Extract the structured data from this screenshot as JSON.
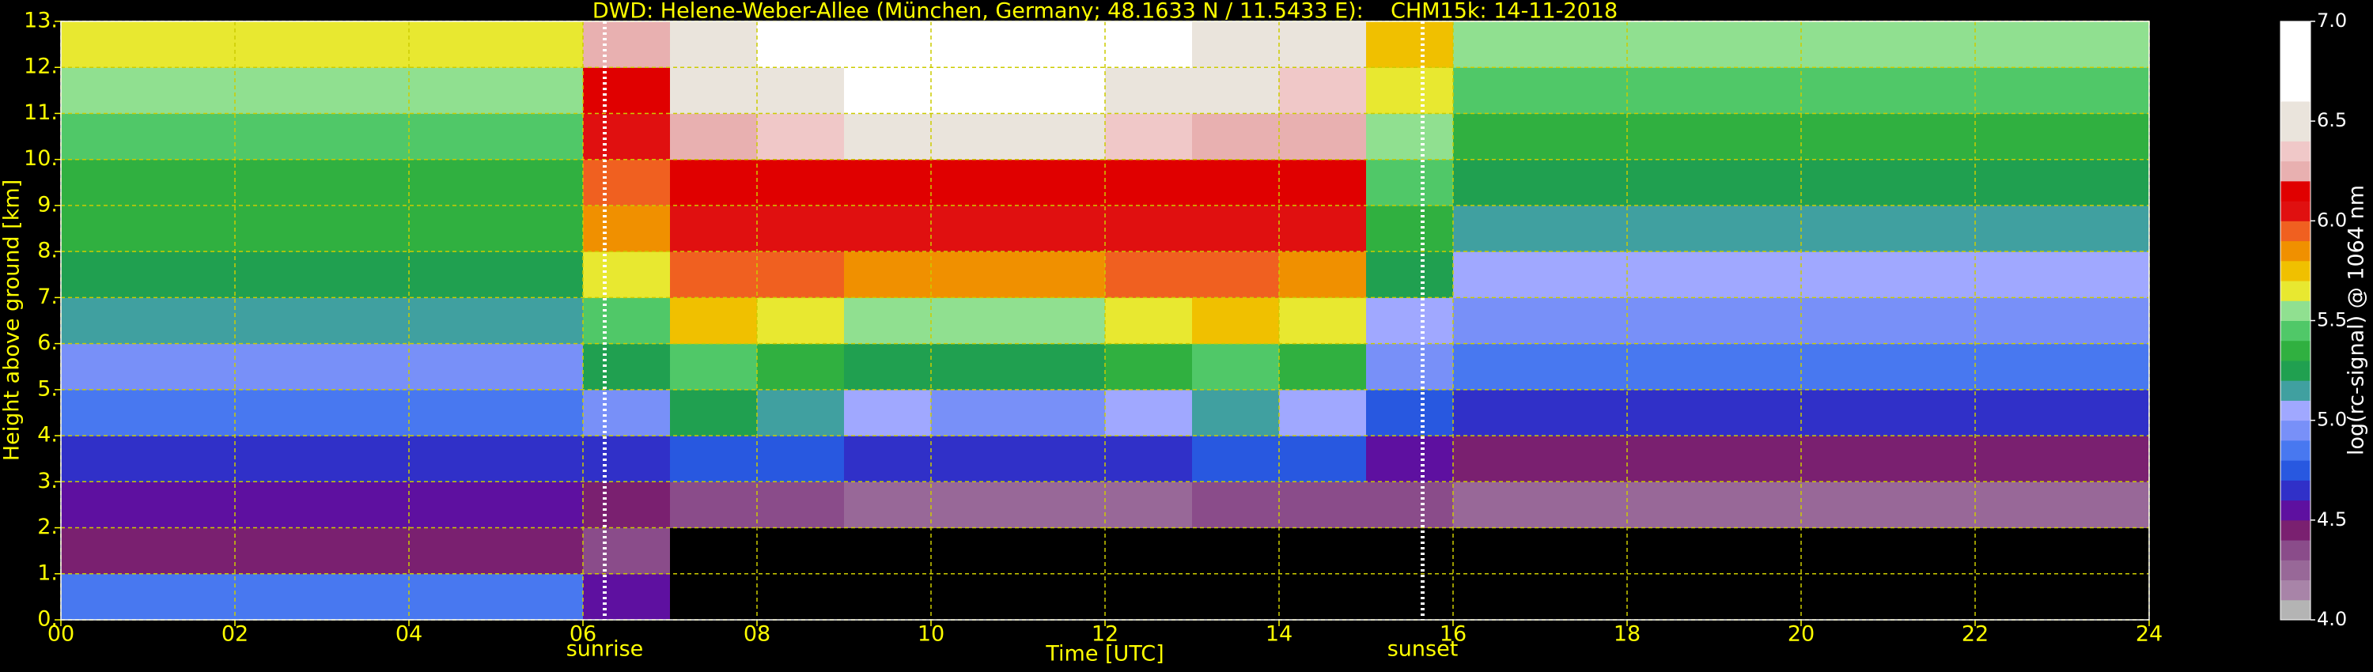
{
  "chart_data": {
    "type": "heatmap",
    "title": "DWD: Helene-Weber-Allee (München, Germany; 48.1633 N / 11.5433 E):    CHM15k: 14-11-2018",
    "xlabel": "Time [UTC]",
    "ylabel": "Height above ground [km]",
    "xlim": [
      0,
      24
    ],
    "ylim": [
      0,
      13
    ],
    "xticks": [
      {
        "value": 0,
        "label": "00"
      },
      {
        "value": 2,
        "label": "02"
      },
      {
        "value": 4,
        "label": "04"
      },
      {
        "value": 6,
        "label": "06"
      },
      {
        "value": 8,
        "label": "08"
      },
      {
        "value": 10,
        "label": "10"
      },
      {
        "value": 12,
        "label": "12"
      },
      {
        "value": 14,
        "label": "14"
      },
      {
        "value": 16,
        "label": "16"
      },
      {
        "value": 18,
        "label": "18"
      },
      {
        "value": 20,
        "label": "20"
      },
      {
        "value": 22,
        "label": "22"
      },
      {
        "value": 24,
        "label": "24"
      }
    ],
    "yticks": [
      {
        "value": 0,
        "label": "0."
      },
      {
        "value": 1,
        "label": "1."
      },
      {
        "value": 2,
        "label": "2."
      },
      {
        "value": 3,
        "label": "3."
      },
      {
        "value": 4,
        "label": "4."
      },
      {
        "value": 5,
        "label": "5."
      },
      {
        "value": 6,
        "label": "6."
      },
      {
        "value": 7,
        "label": "7."
      },
      {
        "value": 8,
        "label": "8."
      },
      {
        "value": 9,
        "label": "9."
      },
      {
        "value": 10,
        "label": "10."
      },
      {
        "value": 11,
        "label": "11."
      },
      {
        "value": 12,
        "label": "12."
      },
      {
        "value": 13,
        "label": "13."
      }
    ],
    "grid": true,
    "xbins": [
      0,
      1,
      2,
      3,
      4,
      5,
      6,
      7,
      8,
      9,
      10,
      11,
      12,
      13,
      14,
      15,
      16,
      17,
      18,
      19,
      20,
      21,
      22,
      23,
      24
    ],
    "ybins": [
      0,
      1,
      2,
      3,
      4,
      5,
      6,
      7,
      8,
      9,
      10,
      11,
      12,
      13
    ],
    "z": [
      [
        4.8,
        4.8,
        4.8,
        4.8,
        4.8,
        4.8,
        4.5,
        3.9,
        3.9,
        3.9,
        3.9,
        3.9,
        3.9,
        3.9,
        3.9,
        3.9,
        3.9,
        3.9,
        3.9,
        3.9,
        3.9,
        3.9,
        3.9,
        3.9
      ],
      [
        4.4,
        4.4,
        4.4,
        4.4,
        4.4,
        4.4,
        4.3,
        3.9,
        3.9,
        3.9,
        3.9,
        3.9,
        3.9,
        3.9,
        3.9,
        3.9,
        3.9,
        3.9,
        3.9,
        3.9,
        3.9,
        3.9,
        3.9,
        3.9
      ],
      [
        4.5,
        4.5,
        4.5,
        4.5,
        4.5,
        4.5,
        4.4,
        4.3,
        4.3,
        4.2,
        4.2,
        4.2,
        4.2,
        4.3,
        4.3,
        4.3,
        4.2,
        4.2,
        4.2,
        4.2,
        4.2,
        4.2,
        4.2,
        4.2
      ],
      [
        4.6,
        4.6,
        4.6,
        4.6,
        4.6,
        4.6,
        4.6,
        4.7,
        4.7,
        4.6,
        4.6,
        4.6,
        4.6,
        4.7,
        4.7,
        4.5,
        4.4,
        4.4,
        4.4,
        4.4,
        4.4,
        4.4,
        4.4,
        4.4
      ],
      [
        4.8,
        4.8,
        4.8,
        4.8,
        4.8,
        4.8,
        4.9,
        5.2,
        5.1,
        5.0,
        4.9,
        4.9,
        5.0,
        5.1,
        5.0,
        4.7,
        4.6,
        4.6,
        4.6,
        4.6,
        4.6,
        4.6,
        4.6,
        4.6
      ],
      [
        4.9,
        4.9,
        4.9,
        4.9,
        4.9,
        4.9,
        5.2,
        5.4,
        5.3,
        5.2,
        5.2,
        5.2,
        5.3,
        5.4,
        5.3,
        4.9,
        4.8,
        4.8,
        4.8,
        4.8,
        4.8,
        4.8,
        4.8,
        4.8
      ],
      [
        5.1,
        5.1,
        5.1,
        5.1,
        5.1,
        5.1,
        5.4,
        5.7,
        5.6,
        5.5,
        5.5,
        5.5,
        5.6,
        5.7,
        5.6,
        5.0,
        4.9,
        4.9,
        4.9,
        4.9,
        4.9,
        4.9,
        4.9,
        4.9
      ],
      [
        5.2,
        5.2,
        5.2,
        5.2,
        5.2,
        5.2,
        5.6,
        5.9,
        5.9,
        5.8,
        5.8,
        5.8,
        5.9,
        5.9,
        5.8,
        5.2,
        5.0,
        5.0,
        5.0,
        5.0,
        5.0,
        5.0,
        5.0,
        5.0
      ],
      [
        5.3,
        5.3,
        5.3,
        5.3,
        5.3,
        5.3,
        5.8,
        6.0,
        6.0,
        6.0,
        6.0,
        6.0,
        6.0,
        6.0,
        6.0,
        5.3,
        5.1,
        5.1,
        5.1,
        5.1,
        5.1,
        5.1,
        5.1,
        5.1
      ],
      [
        5.3,
        5.3,
        5.3,
        5.3,
        5.3,
        5.3,
        5.9,
        6.1,
        6.1,
        6.1,
        6.1,
        6.1,
        6.1,
        6.1,
        6.1,
        5.4,
        5.2,
        5.2,
        5.2,
        5.2,
        5.2,
        5.2,
        5.2,
        5.2
      ],
      [
        5.4,
        5.4,
        5.4,
        5.4,
        5.4,
        5.4,
        6.0,
        6.2,
        6.3,
        6.4,
        6.4,
        6.4,
        6.3,
        6.2,
        6.2,
        5.5,
        5.3,
        5.3,
        5.3,
        5.3,
        5.3,
        5.3,
        5.3,
        5.3
      ],
      [
        5.5,
        5.5,
        5.5,
        5.5,
        5.5,
        5.5,
        6.1,
        6.4,
        6.5,
        6.6,
        6.6,
        6.6,
        6.5,
        6.4,
        6.3,
        5.6,
        5.4,
        5.4,
        5.4,
        5.4,
        5.4,
        5.4,
        5.4,
        5.4
      ],
      [
        5.6,
        5.6,
        5.6,
        5.6,
        5.6,
        5.6,
        6.2,
        6.5,
        6.6,
        6.7,
        6.7,
        6.7,
        6.6,
        6.5,
        6.4,
        5.7,
        5.5,
        5.5,
        5.5,
        5.5,
        5.5,
        5.5,
        5.5,
        5.5
      ]
    ],
    "colorbar": {
      "label": "log(rc-signal) @ 1064 nm",
      "bounds": [
        4.0,
        4.1,
        4.2,
        4.3,
        4.4,
        4.5,
        4.6,
        4.7,
        4.8,
        4.9,
        5.0,
        5.1,
        5.2,
        5.3,
        5.4,
        5.5,
        5.6,
        5.7,
        5.8,
        5.9,
        6.0,
        6.1,
        6.2,
        6.3,
        6.4,
        6.5,
        6.6,
        6.7,
        6.8,
        6.9,
        7.0
      ],
      "colors": [
        "#b4b4b4",
        "#a884a8",
        "#986898",
        "#8a4c8a",
        "#7a2070",
        "#5e10a0",
        "#3030c8",
        "#2858e0",
        "#4878f0",
        "#7890f8",
        "#a0a8ff",
        "#40a0a0",
        "#20a050",
        "#30b040",
        "#50c868",
        "#90e090",
        "#e8e830",
        "#f0c000",
        "#f09000",
        "#f06020",
        "#e01010",
        "#e00000",
        "#e8b0b0",
        "#f0c8c8",
        "#eae4dc",
        "#eae4dc",
        "#ffffff",
        "#ffffff",
        "#ffffff",
        "#ffffff"
      ],
      "ticks": [
        {
          "value": 4,
          "label": "4.0"
        },
        {
          "value": 4.5,
          "label": "4.5"
        },
        {
          "value": 5,
          "label": "5.0"
        },
        {
          "value": 5.5,
          "label": "5.5"
        },
        {
          "value": 6,
          "label": "6.0"
        },
        {
          "value": 6.5,
          "label": "6.5"
        },
        {
          "value": 7,
          "label": "7.0"
        }
      ]
    },
    "annotations": [
      {
        "text": "sunrise",
        "x": 6.25
      },
      {
        "text": "sunset",
        "x": 15.65
      }
    ]
  }
}
